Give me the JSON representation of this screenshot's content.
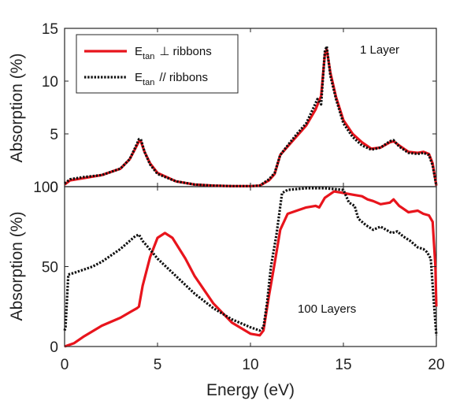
{
  "figure": {
    "xlabel": "Energy (eV)",
    "x_ticks": [
      "0",
      "5",
      "10",
      "15",
      "20"
    ]
  },
  "legend": {
    "perp_main": "E",
    "perp_sub": "tan",
    "perp_rest": "⊥ ribbons",
    "par_main": "E",
    "par_sub": "tan",
    "par_rest": "// ribbons"
  },
  "colors": {
    "perp": "#e8141c",
    "par": "#111111",
    "axis": "#262626"
  },
  "chart_data": [
    {
      "type": "line",
      "panel": "top",
      "annotation": "1 Layer",
      "xlabel": "",
      "ylabel": "Absorption (%)",
      "xlim": [
        0,
        20
      ],
      "ylim": [
        0,
        15
      ],
      "y_ticks": [
        "0",
        "5",
        "10",
        "15"
      ],
      "grid": false,
      "legend_position": "top-left",
      "series": [
        {
          "name": "E_tan ⊥ ribbons",
          "style": "solid",
          "x": [
            0,
            0.3,
            1,
            2,
            3,
            3.5,
            3.8,
            4.0,
            4.1,
            4.3,
            4.6,
            5,
            6,
            7,
            8,
            9,
            10,
            10.5,
            11,
            11.3,
            11.6,
            12,
            12.5,
            13,
            13.5,
            13.8,
            14.0,
            14.1,
            14.3,
            14.6,
            15,
            15.5,
            16,
            16.5,
            17,
            17.5,
            17.7,
            18,
            18.5,
            19,
            19.3,
            19.6,
            19.8,
            20
          ],
          "y": [
            0.2,
            0.6,
            0.8,
            1.1,
            1.7,
            2.6,
            3.6,
            4.3,
            4.3,
            3.3,
            2.2,
            1.3,
            0.5,
            0.2,
            0.1,
            0.05,
            0.05,
            0.1,
            0.6,
            1.2,
            3.0,
            3.8,
            4.8,
            5.8,
            7.3,
            8.6,
            12.5,
            13.0,
            10.8,
            8.5,
            6.3,
            5.0,
            4.2,
            3.6,
            3.7,
            4.2,
            4.3,
            3.9,
            3.3,
            3.2,
            3.3,
            3.1,
            2.2,
            0.1
          ]
        },
        {
          "name": "E_tan // ribbons",
          "style": "dotted",
          "x": [
            0,
            0.3,
            1,
            2,
            3,
            3.5,
            3.8,
            4.0,
            4.1,
            4.3,
            4.6,
            5,
            6,
            7,
            8,
            9,
            10,
            10.5,
            11,
            11.3,
            11.6,
            12,
            12.5,
            13,
            13.4,
            13.6,
            13.8,
            14.0,
            14.1,
            14.3,
            14.6,
            15,
            15.5,
            16,
            16.5,
            17,
            17.5,
            17.7,
            18,
            18.5,
            19,
            19.3,
            19.6,
            19.8,
            20
          ],
          "y": [
            0.3,
            0.7,
            0.9,
            1.1,
            1.7,
            2.6,
            3.7,
            4.5,
            4.5,
            3.3,
            2.1,
            1.2,
            0.5,
            0.2,
            0.1,
            0.05,
            0.05,
            0.1,
            0.7,
            1.3,
            3.0,
            3.9,
            5.0,
            6.0,
            7.5,
            8.3,
            7.8,
            12.8,
            13.3,
            10.5,
            8.3,
            6.0,
            4.7,
            3.9,
            3.5,
            3.7,
            4.3,
            4.4,
            3.8,
            3.2,
            3.1,
            3.2,
            3.0,
            2.0,
            0.1
          ]
        }
      ]
    },
    {
      "type": "line",
      "panel": "bottom",
      "annotation": "100 Layers",
      "xlabel": "Energy (eV)",
      "ylabel": "Absorption (%)",
      "xlim": [
        0,
        20
      ],
      "ylim": [
        0,
        100
      ],
      "y_ticks": [
        "0",
        "50",
        "100"
      ],
      "grid": false,
      "series": [
        {
          "name": "E_tan ⊥ ribbons",
          "style": "solid",
          "x": [
            0,
            0.5,
            1,
            2,
            3,
            3.6,
            3.9,
            4.0,
            4.2,
            4.6,
            5.0,
            5.4,
            5.8,
            6.5,
            7,
            8,
            9,
            10,
            10.5,
            10.7,
            11,
            11.3,
            11.6,
            12,
            13,
            13.5,
            13.7,
            14,
            14.5,
            15,
            15.5,
            16,
            16.3,
            16.6,
            17,
            17.5,
            17.7,
            18,
            18.5,
            19,
            19.3,
            19.6,
            19.8,
            19.95,
            20
          ],
          "y": [
            0,
            2,
            6,
            13,
            18,
            22,
            24,
            25,
            38,
            56,
            68,
            71,
            68,
            55,
            44,
            27,
            15,
            8,
            7,
            10,
            32,
            52,
            73,
            83,
            87,
            88,
            87,
            93,
            97,
            96,
            95,
            94,
            92,
            91,
            89,
            90,
            92,
            88,
            84,
            85,
            83,
            82,
            78,
            50,
            25
          ]
        },
        {
          "name": "E_tan // ribbons",
          "style": "dotted",
          "x": [
            0,
            0.05,
            0.2,
            0.5,
            1,
            1.5,
            2,
            2.5,
            3,
            3.5,
            3.8,
            4.0,
            4.2,
            4.5,
            5,
            6,
            7,
            8,
            9,
            10,
            10.5,
            10.7,
            10.9,
            11.1,
            11.4,
            11.7,
            12,
            13,
            14,
            15,
            15.3,
            15.6,
            15.8,
            16.2,
            16.6,
            17,
            17.3,
            17.6,
            17.9,
            18.2,
            18.6,
            19,
            19.3,
            19.5,
            19.7,
            19.85,
            20
          ],
          "y": [
            10,
            12,
            45,
            46,
            48,
            50,
            53,
            57,
            61,
            66,
            69,
            70,
            66,
            62,
            55,
            44,
            33,
            24,
            17,
            12,
            10,
            12,
            28,
            50,
            70,
            96,
            98,
            99,
            99,
            98,
            90,
            88,
            80,
            76,
            73,
            75,
            73,
            71,
            72,
            69,
            66,
            62,
            61,
            59,
            55,
            30,
            7
          ]
        }
      ]
    }
  ]
}
